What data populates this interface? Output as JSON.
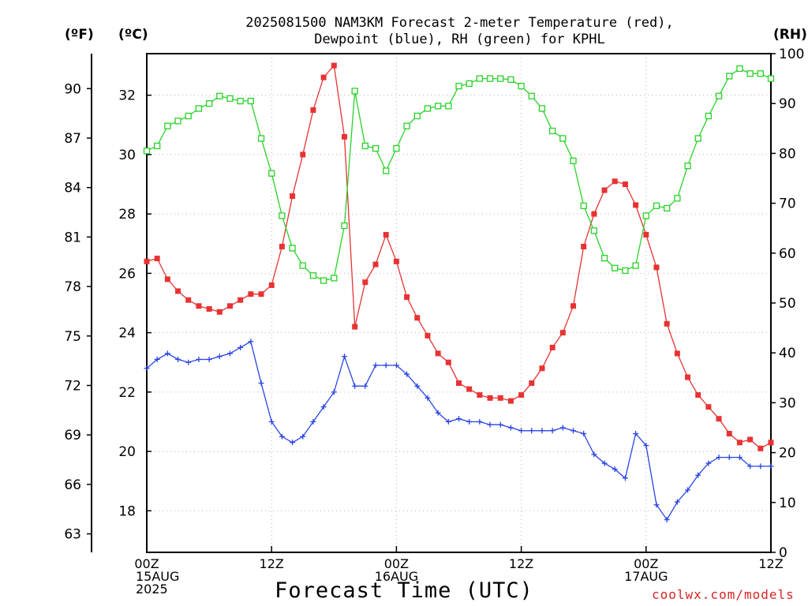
{
  "title": {
    "line1": "2025081500 NAM3KM Forecast 2-meter Temperature (red),",
    "line2": "Dewpoint (blue), RH (green) for KPHL"
  },
  "units": {
    "fahrenheit": "(ºF)",
    "celsius": "(ºC)",
    "rh": "(RH)"
  },
  "xlabel": "Forecast Time (UTC)",
  "credit": "coolwx.com/models",
  "chart_data": {
    "type": "line",
    "x_unit": "forecast hour",
    "xlim": [
      0,
      60
    ],
    "x_ticks": [
      {
        "x": 0,
        "lines": [
          "00Z",
          "15AUG",
          "2025"
        ]
      },
      {
        "x": 12,
        "lines": [
          "12Z"
        ]
      },
      {
        "x": 24,
        "lines": [
          "00Z",
          "16AUG"
        ]
      },
      {
        "x": 36,
        "lines": [
          "12Z"
        ]
      },
      {
        "x": 48,
        "lines": [
          "00Z",
          "17AUG"
        ]
      },
      {
        "x": 60,
        "lines": [
          "12Z"
        ]
      }
    ],
    "celsius_axis": {
      "ylim": [
        16.6,
        33.4
      ],
      "ticks": [
        18,
        20,
        22,
        24,
        26,
        28,
        30,
        32
      ]
    },
    "fahrenheit_axis": {
      "ticks": [
        63,
        66,
        69,
        72,
        75,
        78,
        81,
        84,
        87,
        90
      ]
    },
    "rh_axis": {
      "ylim": [
        0,
        100
      ],
      "ticks": [
        0,
        10,
        20,
        30,
        40,
        50,
        60,
        70,
        80,
        90,
        100
      ]
    },
    "grid": true,
    "series": [
      {
        "name": "2-meter Temperature",
        "axis": "celsius",
        "color": "#e83232",
        "marker": "filled-square",
        "x": [
          0,
          1,
          2,
          3,
          4,
          5,
          6,
          7,
          8,
          9,
          10,
          11,
          12,
          13,
          14,
          15,
          16,
          17,
          18,
          19,
          20,
          21,
          22,
          23,
          24,
          25,
          26,
          27,
          28,
          29,
          30,
          31,
          32,
          33,
          34,
          35,
          36,
          37,
          38,
          39,
          40,
          41,
          42,
          43,
          44,
          45,
          46,
          47,
          48,
          49,
          50,
          51,
          52,
          53,
          54,
          55,
          56,
          57,
          58,
          59,
          60
        ],
        "values": [
          26.4,
          26.5,
          25.8,
          25.4,
          25.1,
          24.9,
          24.8,
          24.7,
          24.9,
          25.1,
          25.3,
          25.3,
          25.6,
          26.9,
          28.6,
          30.0,
          31.5,
          32.6,
          33.0,
          30.6,
          24.2,
          25.7,
          26.3,
          27.3,
          26.4,
          25.2,
          24.5,
          23.9,
          23.3,
          23.0,
          22.3,
          22.1,
          21.9,
          21.8,
          21.8,
          21.7,
          21.9,
          22.3,
          22.8,
          23.5,
          24.0,
          24.9,
          26.9,
          28.0,
          28.8,
          29.1,
          29.0,
          28.3,
          27.3,
          26.2,
          24.3,
          23.3,
          22.5,
          21.9,
          21.5,
          21.1,
          20.6,
          20.3,
          20.4,
          20.1,
          20.3
        ]
      },
      {
        "name": "Dewpoint",
        "axis": "celsius",
        "color": "#2a44e6",
        "marker": "plus",
        "x": [
          0,
          1,
          2,
          3,
          4,
          5,
          6,
          7,
          8,
          9,
          10,
          11,
          12,
          13,
          14,
          15,
          16,
          17,
          18,
          19,
          20,
          21,
          22,
          23,
          24,
          25,
          26,
          27,
          28,
          29,
          30,
          31,
          32,
          33,
          34,
          35,
          36,
          37,
          38,
          39,
          40,
          41,
          42,
          43,
          44,
          45,
          46,
          47,
          48,
          49,
          50,
          51,
          52,
          53,
          54,
          55,
          56,
          57,
          58,
          59,
          60
        ],
        "values": [
          22.8,
          23.1,
          23.3,
          23.1,
          23.0,
          23.1,
          23.1,
          23.2,
          23.3,
          23.5,
          23.7,
          22.3,
          21.0,
          20.5,
          20.3,
          20.5,
          21.0,
          21.5,
          22.0,
          23.2,
          22.2,
          22.2,
          22.9,
          22.9,
          22.9,
          22.6,
          22.2,
          21.8,
          21.3,
          21.0,
          21.1,
          21.0,
          21.0,
          20.9,
          20.9,
          20.8,
          20.7,
          20.7,
          20.7,
          20.7,
          20.8,
          20.7,
          20.6,
          19.9,
          19.6,
          19.4,
          19.1,
          20.6,
          20.2,
          18.2,
          17.7,
          18.3,
          18.7,
          19.2,
          19.6,
          19.8,
          19.8,
          19.8,
          19.5,
          19.5,
          19.5
        ]
      },
      {
        "name": "RH",
        "axis": "rh",
        "color": "#28d228",
        "marker": "open-square",
        "x": [
          0,
          1,
          2,
          3,
          4,
          5,
          6,
          7,
          8,
          9,
          10,
          11,
          12,
          13,
          14,
          15,
          16,
          17,
          18,
          19,
          20,
          21,
          22,
          23,
          24,
          25,
          26,
          27,
          28,
          29,
          30,
          31,
          32,
          33,
          34,
          35,
          36,
          37,
          38,
          39,
          40,
          41,
          42,
          43,
          44,
          45,
          46,
          47,
          48,
          49,
          50,
          51,
          52,
          53,
          54,
          55,
          56,
          57,
          58,
          59,
          60
        ],
        "values": [
          80.5,
          81.5,
          85.5,
          86.5,
          87.5,
          89.0,
          90.0,
          91.5,
          91.0,
          90.5,
          90.5,
          83.0,
          76.0,
          67.5,
          61.0,
          57.5,
          55.5,
          54.5,
          55.0,
          65.5,
          92.5,
          81.5,
          81.0,
          76.5,
          81.0,
          85.5,
          87.5,
          89.0,
          89.5,
          89.5,
          93.5,
          94.0,
          95.0,
          95.0,
          95.0,
          94.8,
          93.5,
          91.5,
          89.0,
          84.5,
          83.0,
          78.5,
          69.5,
          64.5,
          59.0,
          57.0,
          56.5,
          57.5,
          67.5,
          69.5,
          69.0,
          71.0,
          77.5,
          83.0,
          87.5,
          91.5,
          95.5,
          97.0,
          96.0,
          96.0,
          95.0
        ]
      }
    ]
  }
}
